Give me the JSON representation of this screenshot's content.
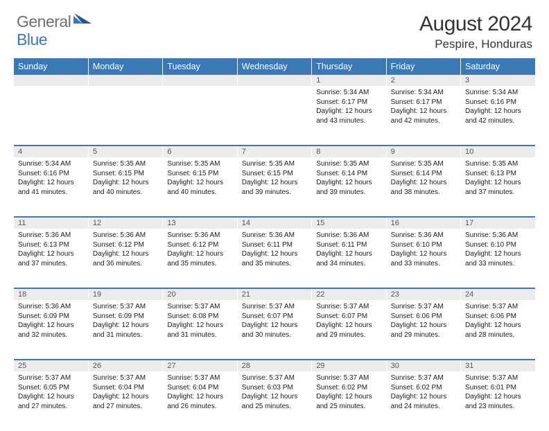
{
  "brand": {
    "general": "General",
    "blue": "Blue"
  },
  "header": {
    "title": "August 2024",
    "location": "Pespire, Honduras"
  },
  "style": {
    "accent": "#3a78b6",
    "header_text": "#ffffff",
    "daynum_bg": "#ececec",
    "body_text": "#1a1a1a",
    "logo_gray": "#6f6f6f"
  },
  "weekdays": [
    "Sunday",
    "Monday",
    "Tuesday",
    "Wednesday",
    "Thursday",
    "Friday",
    "Saturday"
  ],
  "weeks": [
    {
      "nums": [
        "",
        "",
        "",
        "",
        "1",
        "2",
        "3"
      ],
      "cells": [
        [],
        [],
        [],
        [],
        [
          "Sunrise: 5:34 AM",
          "Sunset: 6:17 PM",
          "Daylight: 12 hours",
          "and 43 minutes."
        ],
        [
          "Sunrise: 5:34 AM",
          "Sunset: 6:17 PM",
          "Daylight: 12 hours",
          "and 42 minutes."
        ],
        [
          "Sunrise: 5:34 AM",
          "Sunset: 6:16 PM",
          "Daylight: 12 hours",
          "and 42 minutes."
        ]
      ]
    },
    {
      "nums": [
        "4",
        "5",
        "6",
        "7",
        "8",
        "9",
        "10"
      ],
      "cells": [
        [
          "Sunrise: 5:34 AM",
          "Sunset: 6:16 PM",
          "Daylight: 12 hours",
          "and 41 minutes."
        ],
        [
          "Sunrise: 5:35 AM",
          "Sunset: 6:15 PM",
          "Daylight: 12 hours",
          "and 40 minutes."
        ],
        [
          "Sunrise: 5:35 AM",
          "Sunset: 6:15 PM",
          "Daylight: 12 hours",
          "and 40 minutes."
        ],
        [
          "Sunrise: 5:35 AM",
          "Sunset: 6:15 PM",
          "Daylight: 12 hours",
          "and 39 minutes."
        ],
        [
          "Sunrise: 5:35 AM",
          "Sunset: 6:14 PM",
          "Daylight: 12 hours",
          "and 39 minutes."
        ],
        [
          "Sunrise: 5:35 AM",
          "Sunset: 6:14 PM",
          "Daylight: 12 hours",
          "and 38 minutes."
        ],
        [
          "Sunrise: 5:35 AM",
          "Sunset: 6:13 PM",
          "Daylight: 12 hours",
          "and 37 minutes."
        ]
      ]
    },
    {
      "nums": [
        "11",
        "12",
        "13",
        "14",
        "15",
        "16",
        "17"
      ],
      "cells": [
        [
          "Sunrise: 5:36 AM",
          "Sunset: 6:13 PM",
          "Daylight: 12 hours",
          "and 37 minutes."
        ],
        [
          "Sunrise: 5:36 AM",
          "Sunset: 6:12 PM",
          "Daylight: 12 hours",
          "and 36 minutes."
        ],
        [
          "Sunrise: 5:36 AM",
          "Sunset: 6:12 PM",
          "Daylight: 12 hours",
          "and 35 minutes."
        ],
        [
          "Sunrise: 5:36 AM",
          "Sunset: 6:11 PM",
          "Daylight: 12 hours",
          "and 35 minutes."
        ],
        [
          "Sunrise: 5:36 AM",
          "Sunset: 6:11 PM",
          "Daylight: 12 hours",
          "and 34 minutes."
        ],
        [
          "Sunrise: 5:36 AM",
          "Sunset: 6:10 PM",
          "Daylight: 12 hours",
          "and 33 minutes."
        ],
        [
          "Sunrise: 5:36 AM",
          "Sunset: 6:10 PM",
          "Daylight: 12 hours",
          "and 33 minutes."
        ]
      ]
    },
    {
      "nums": [
        "18",
        "19",
        "20",
        "21",
        "22",
        "23",
        "24"
      ],
      "cells": [
        [
          "Sunrise: 5:36 AM",
          "Sunset: 6:09 PM",
          "Daylight: 12 hours",
          "and 32 minutes."
        ],
        [
          "Sunrise: 5:37 AM",
          "Sunset: 6:09 PM",
          "Daylight: 12 hours",
          "and 31 minutes."
        ],
        [
          "Sunrise: 5:37 AM",
          "Sunset: 6:08 PM",
          "Daylight: 12 hours",
          "and 31 minutes."
        ],
        [
          "Sunrise: 5:37 AM",
          "Sunset: 6:07 PM",
          "Daylight: 12 hours",
          "and 30 minutes."
        ],
        [
          "Sunrise: 5:37 AM",
          "Sunset: 6:07 PM",
          "Daylight: 12 hours",
          "and 29 minutes."
        ],
        [
          "Sunrise: 5:37 AM",
          "Sunset: 6:06 PM",
          "Daylight: 12 hours",
          "and 29 minutes."
        ],
        [
          "Sunrise: 5:37 AM",
          "Sunset: 6:06 PM",
          "Daylight: 12 hours",
          "and 28 minutes."
        ]
      ]
    },
    {
      "nums": [
        "25",
        "26",
        "27",
        "28",
        "29",
        "30",
        "31"
      ],
      "cells": [
        [
          "Sunrise: 5:37 AM",
          "Sunset: 6:05 PM",
          "Daylight: 12 hours",
          "and 27 minutes."
        ],
        [
          "Sunrise: 5:37 AM",
          "Sunset: 6:04 PM",
          "Daylight: 12 hours",
          "and 27 minutes."
        ],
        [
          "Sunrise: 5:37 AM",
          "Sunset: 6:04 PM",
          "Daylight: 12 hours",
          "and 26 minutes."
        ],
        [
          "Sunrise: 5:37 AM",
          "Sunset: 6:03 PM",
          "Daylight: 12 hours",
          "and 25 minutes."
        ],
        [
          "Sunrise: 5:37 AM",
          "Sunset: 6:02 PM",
          "Daylight: 12 hours",
          "and 25 minutes."
        ],
        [
          "Sunrise: 5:37 AM",
          "Sunset: 6:02 PM",
          "Daylight: 12 hours",
          "and 24 minutes."
        ],
        [
          "Sunrise: 5:37 AM",
          "Sunset: 6:01 PM",
          "Daylight: 12 hours",
          "and 23 minutes."
        ]
      ]
    }
  ]
}
